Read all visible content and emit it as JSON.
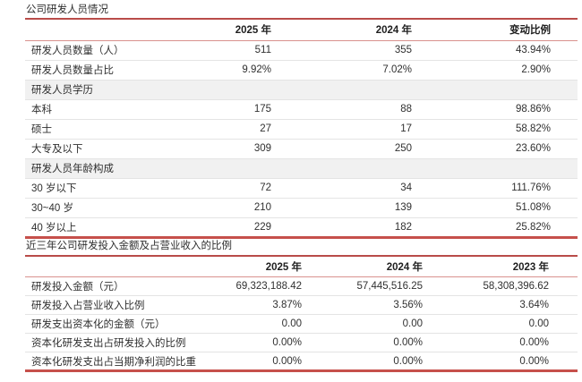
{
  "colors": {
    "accent_red": "#b94c49",
    "accent_heavy_red": "#c6504b",
    "header_rule_pink": "#d9918e",
    "row_rule_gray": "#e4e4e4",
    "section_band_gray": "#f1f1f1",
    "text_dark": "#303030"
  },
  "table1": {
    "title": "公司研发人员情况",
    "headers": [
      "",
      "2025 年",
      "2024 年",
      "变动比例"
    ],
    "rows": [
      {
        "type": "data",
        "label": "研发人员数量（人）",
        "values": [
          "511",
          "355",
          "43.94%"
        ]
      },
      {
        "type": "data",
        "label": "研发人员数量占比",
        "values": [
          "9.92%",
          "7.02%",
          "2.90%"
        ]
      },
      {
        "type": "section",
        "label": "研发人员学历"
      },
      {
        "type": "data",
        "label": "本科",
        "values": [
          "175",
          "88",
          "98.86%"
        ]
      },
      {
        "type": "data",
        "label": "硕士",
        "values": [
          "27",
          "17",
          "58.82%"
        ]
      },
      {
        "type": "data",
        "label": "大专及以下",
        "values": [
          "309",
          "250",
          "23.60%"
        ]
      },
      {
        "type": "section",
        "label": "研发人员年龄构成"
      },
      {
        "type": "data",
        "label": "30 岁以下",
        "values": [
          "72",
          "34",
          "111.76%"
        ]
      },
      {
        "type": "data",
        "label": "30~40 岁",
        "values": [
          "210",
          "139",
          "51.08%"
        ]
      },
      {
        "type": "data",
        "label": "40 岁以上",
        "values": [
          "229",
          "182",
          "25.82%"
        ]
      }
    ]
  },
  "table2": {
    "title": "近三年公司研发投入金额及占营业收入的比例",
    "headers": [
      "",
      "2025 年",
      "2024 年",
      "2023 年"
    ],
    "rows": [
      {
        "type": "data",
        "label": "研发投入金额（元）",
        "values": [
          "69,323,188.42",
          "57,445,516.25",
          "58,308,396.62"
        ]
      },
      {
        "type": "data",
        "label": "研发投入占营业收入比例",
        "values": [
          "3.87%",
          "3.56%",
          "3.64%"
        ]
      },
      {
        "type": "data",
        "label": "研发支出资本化的金额（元）",
        "values": [
          "0.00",
          "0.00",
          "0.00"
        ]
      },
      {
        "type": "data",
        "label": "资本化研发支出占研发投入的比例",
        "values": [
          "0.00%",
          "0.00%",
          "0.00%"
        ]
      },
      {
        "type": "data",
        "label": "资本化研发支出占当期净利润的比重",
        "values": [
          "0.00%",
          "0.00%",
          "0.00%"
        ]
      }
    ]
  }
}
